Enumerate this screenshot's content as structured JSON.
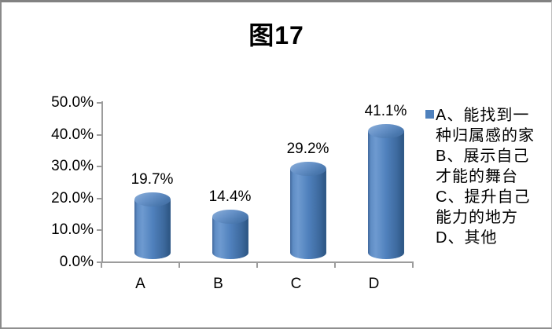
{
  "title": "图17",
  "colors": {
    "bar": "#4f81bd",
    "legend_marker": "#4f81bd",
    "axis": "#9c9c9c",
    "text": "#000000",
    "frame_border": "#828282"
  },
  "chart_data": {
    "type": "bar",
    "subtype": "3d-cylinder",
    "title": "图17",
    "categories": [
      "A",
      "B",
      "C",
      "D"
    ],
    "values": [
      19.7,
      14.4,
      29.2,
      41.1
    ],
    "value_labels": [
      "19.7%",
      "14.4%",
      "29.2%",
      "41.1%"
    ],
    "xlabel": "",
    "ylabel": "",
    "ylim": [
      0,
      50
    ],
    "ytick_step": 10,
    "ytick_labels": [
      "0.0%",
      "10.0%",
      "20.0%",
      "30.0%",
      "40.0%",
      "50.0%"
    ],
    "grid": false,
    "legend_position": "right",
    "series_name": "A、能找到一种归属感的家 B、展示自己才能的舞台 C、提升自己能力的地方 D、其他"
  },
  "legend": {
    "lines": [
      "A、能找到一",
      "种归属感的家",
      "B、展示自己",
      "才能的舞台",
      "C、提升自己",
      "能力的地方",
      "D、其他"
    ]
  }
}
